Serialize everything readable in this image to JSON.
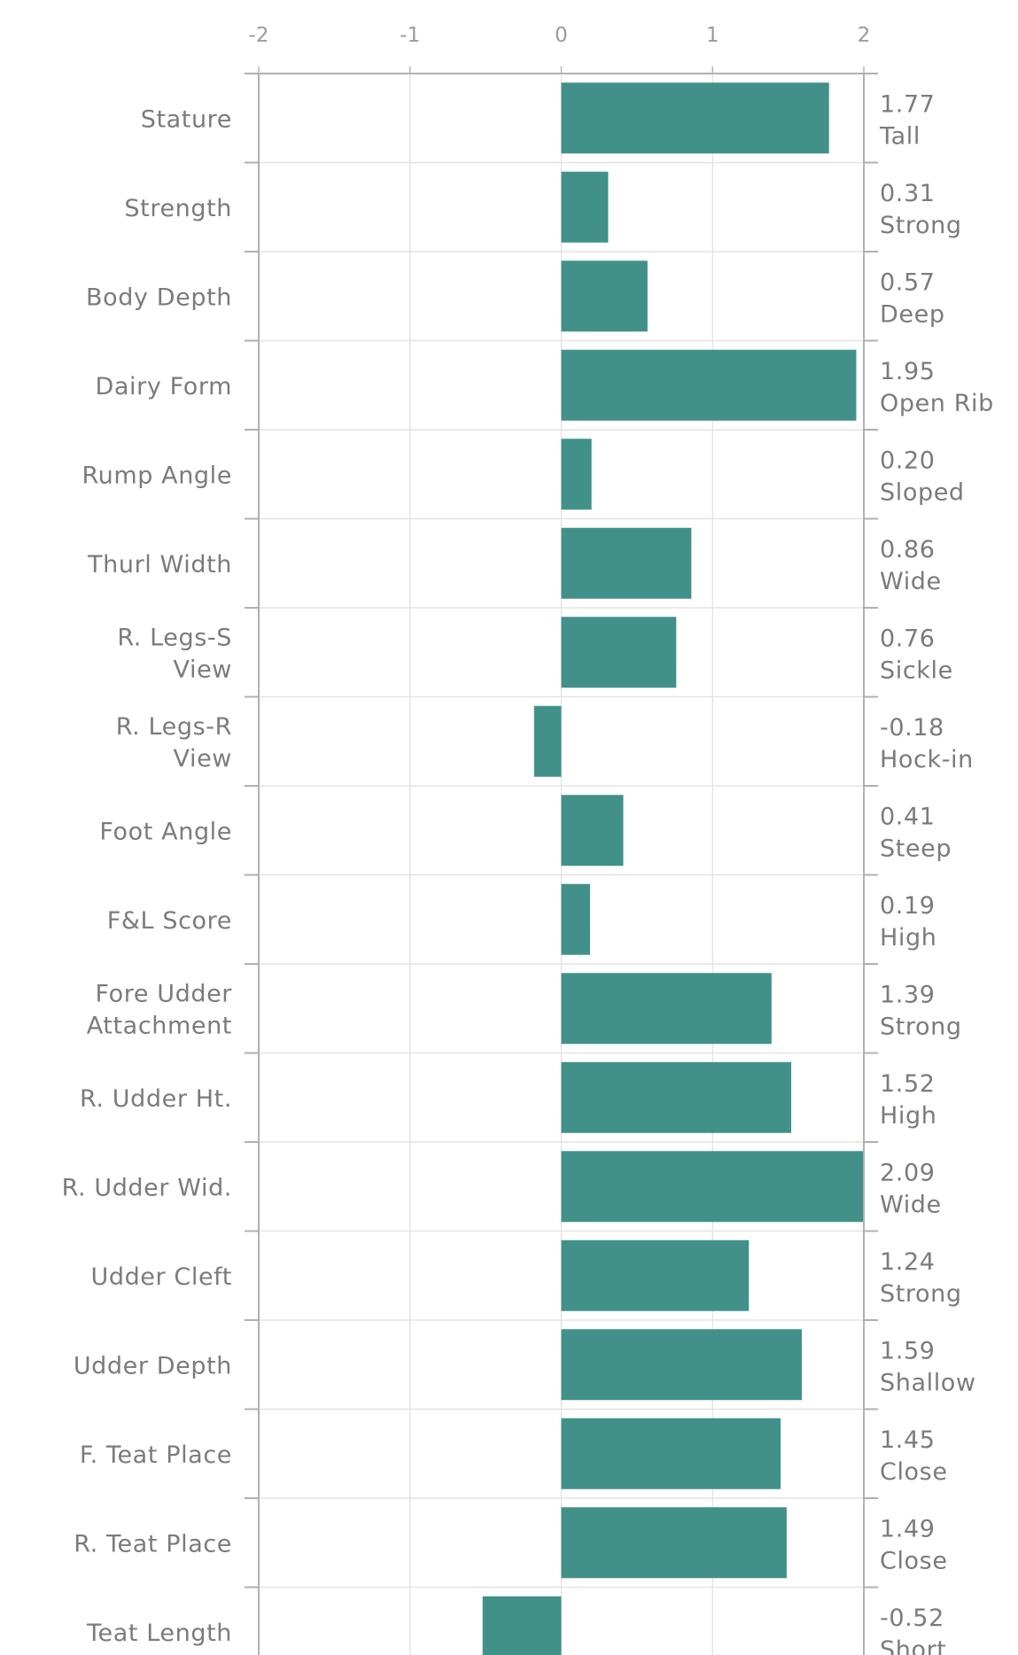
{
  "chart_data": {
    "type": "bar",
    "orientation": "horizontal",
    "title": "",
    "xlabel": "",
    "ylabel": "",
    "xlim": [
      -2,
      2
    ],
    "x_ticks": [
      "-2",
      "-1",
      "0",
      "1",
      "2"
    ],
    "grid": true,
    "bar_color": "#41918a",
    "categories": [
      "Stature",
      "Strength",
      "Body Depth",
      "Dairy Form",
      "Rump Angle",
      "Thurl Width",
      "R. Legs-S View",
      "R. Legs-R View",
      "Foot Angle",
      "F&L Score",
      "Fore Udder Attachment",
      "R. Udder Ht.",
      "R. Udder Wid.",
      "Udder Cleft",
      "Udder Depth",
      "F. Teat Place",
      "R. Teat Place",
      "Teat Length"
    ],
    "category_lines": [
      [
        "Stature"
      ],
      [
        "Strength"
      ],
      [
        "Body Depth"
      ],
      [
        "Dairy Form"
      ],
      [
        "Rump Angle"
      ],
      [
        "Thurl Width"
      ],
      [
        "R. Legs-S",
        "View"
      ],
      [
        "R. Legs-R",
        "View"
      ],
      [
        "Foot Angle"
      ],
      [
        "F&L Score"
      ],
      [
        "Fore Udder",
        "Attachment"
      ],
      [
        "R. Udder Ht."
      ],
      [
        "R. Udder Wid."
      ],
      [
        "Udder Cleft"
      ],
      [
        "Udder Depth"
      ],
      [
        "F. Teat Place"
      ],
      [
        "R. Teat Place"
      ],
      [
        "Teat Length"
      ]
    ],
    "values": [
      1.77,
      0.31,
      0.57,
      1.95,
      0.2,
      0.86,
      0.76,
      -0.18,
      0.41,
      0.19,
      1.39,
      1.52,
      2.09,
      1.24,
      1.59,
      1.45,
      1.49,
      -0.52
    ],
    "value_labels": [
      "1.77",
      "0.31",
      "0.57",
      "1.95",
      "0.20",
      "0.86",
      "0.76",
      "-0.18",
      "0.41",
      "0.19",
      "1.39",
      "1.52",
      "2.09",
      "1.24",
      "1.59",
      "1.45",
      "1.49",
      "-0.52"
    ],
    "descriptors": [
      "Tall",
      "Strong",
      "Deep",
      "Open Rib",
      "Sloped",
      "Wide",
      "Sickle",
      "Hock-in",
      "Steep",
      "High",
      "Strong",
      "High",
      "Wide",
      "Strong",
      "Shallow",
      "Close",
      "Close",
      "Short"
    ]
  }
}
